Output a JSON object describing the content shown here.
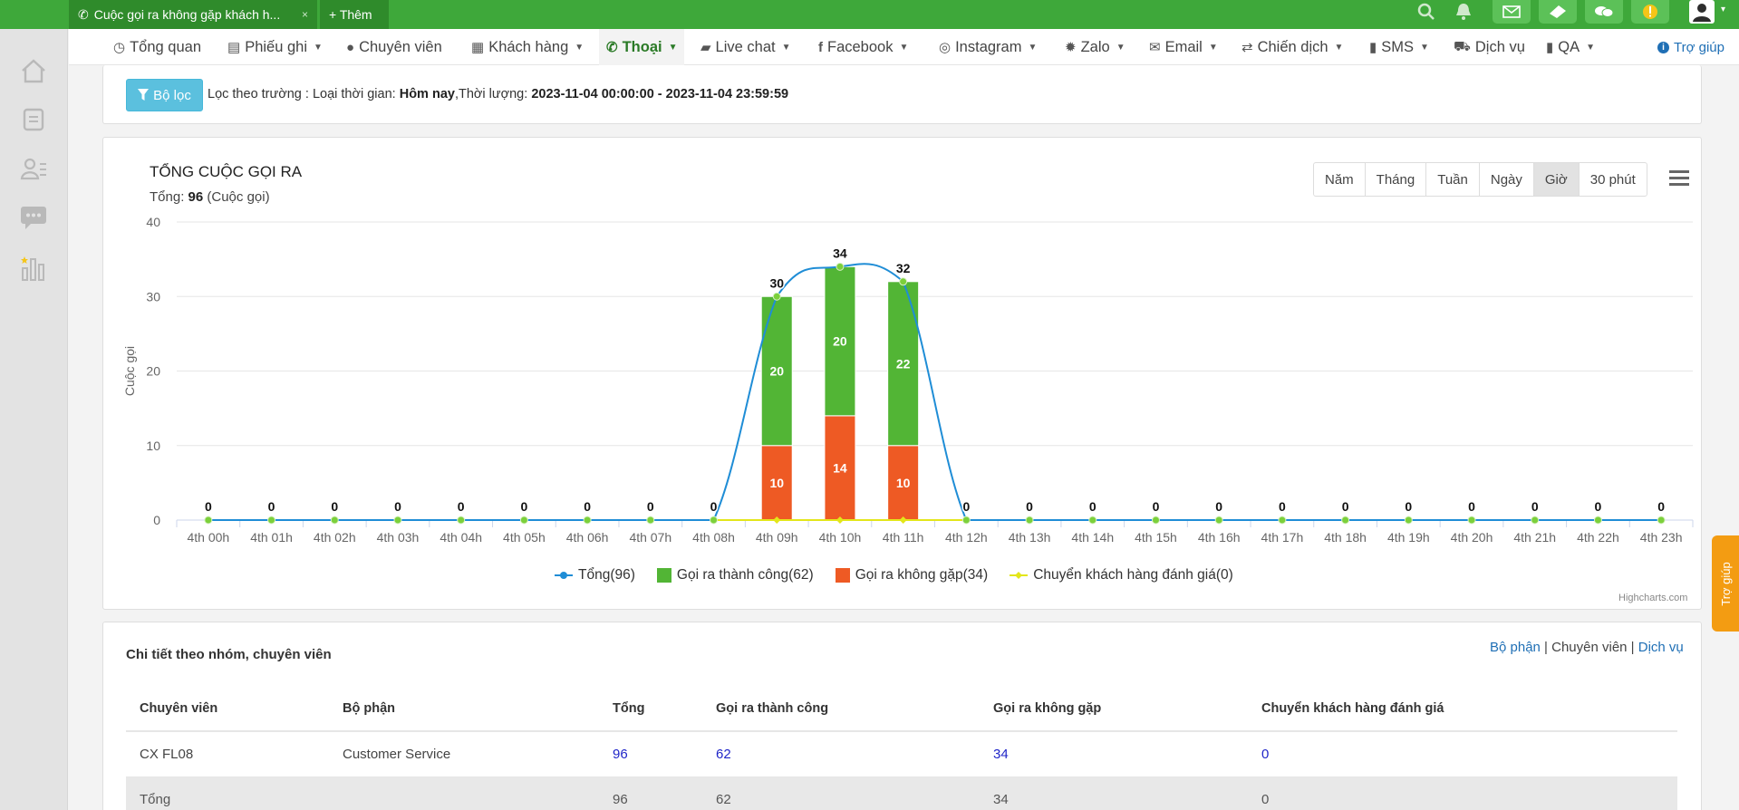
{
  "tabs": [
    {
      "label": "Cuộc gọi ra không gặp khách h...",
      "close": "×"
    },
    {
      "label": "+ Thêm"
    }
  ],
  "nav": {
    "items": [
      "Tổng quan",
      "Phiếu ghi",
      "Chuyên viên",
      "Khách hàng",
      "Thoại",
      "Live chat",
      "Facebook",
      "Instagram",
      "Zalo",
      "Email",
      "Chiến dịch",
      "SMS",
      "Dịch vụ",
      "QA"
    ],
    "active": "Thoại",
    "help": "Trợ giúp"
  },
  "filter": {
    "button": "Bộ lọc",
    "prefix": "Lọc theo trường : Loại thời gian: ",
    "time_type": "Hôm nay",
    "duration_label": ",Thời lượng: ",
    "range": "2023-11-04 00:00:00 - 2023-11-04 23:59:59"
  },
  "chart_header": {
    "title": "TỔNG CUỘC GỌI RA",
    "sub_prefix": "Tổng: ",
    "total": "96",
    "sub_suffix": " (Cuộc gọi)"
  },
  "range_buttons": [
    "Năm",
    "Tháng",
    "Tuần",
    "Ngày",
    "Giờ",
    "30 phút"
  ],
  "range_selected": "Giờ",
  "chart_data": {
    "type": "bar",
    "stacked": true,
    "categories": [
      "4th 00h",
      "4th 01h",
      "4th 02h",
      "4th 03h",
      "4th 04h",
      "4th 05h",
      "4th 06h",
      "4th 07h",
      "4th 08h",
      "4th 09h",
      "4th 10h",
      "4th 11h",
      "4th 12h",
      "4th 13h",
      "4th 14h",
      "4th 15h",
      "4th 16h",
      "4th 17h",
      "4th 18h",
      "4th 19h",
      "4th 20h",
      "4th 21h",
      "4th 22h",
      "4th 23h"
    ],
    "series": [
      {
        "name": "Tổng(96)",
        "kind": "spline",
        "color": "#1f8dd6",
        "values": [
          0,
          0,
          0,
          0,
          0,
          0,
          0,
          0,
          0,
          30,
          34,
          32,
          0,
          0,
          0,
          0,
          0,
          0,
          0,
          0,
          0,
          0,
          0,
          0
        ]
      },
      {
        "name": "Gọi ra thành công(62)",
        "kind": "column",
        "color": "#52b535",
        "values": [
          0,
          0,
          0,
          0,
          0,
          0,
          0,
          0,
          0,
          20,
          20,
          22,
          0,
          0,
          0,
          0,
          0,
          0,
          0,
          0,
          0,
          0,
          0,
          0
        ]
      },
      {
        "name": "Gọi ra không gặp(34)",
        "kind": "column",
        "color": "#ee5a24",
        "values": [
          0,
          0,
          0,
          0,
          0,
          0,
          0,
          0,
          0,
          10,
          14,
          10,
          0,
          0,
          0,
          0,
          0,
          0,
          0,
          0,
          0,
          0,
          0,
          0
        ]
      },
      {
        "name": "Chuyển khách hàng đánh giá(0)",
        "kind": "line",
        "color": "#e3e61a",
        "values": [
          0,
          0,
          0,
          0,
          0,
          0,
          0,
          0,
          0,
          0,
          0,
          0,
          0,
          0,
          0,
          0,
          0,
          0,
          0,
          0,
          0,
          0,
          0,
          0
        ]
      }
    ],
    "ylabel": "Cuộc gọi",
    "ylim": [
      0,
      40
    ],
    "yticks": [
      0,
      10,
      20,
      30,
      40
    ],
    "legend": "bottom-center",
    "grid": true
  },
  "credits": "Highcharts.com",
  "details": {
    "title": "Chi tiết theo nhóm, chuyên viên",
    "links": [
      "Bộ phận",
      "Chuyên viên",
      "Dịch vụ"
    ],
    "sep": " | ",
    "columns": [
      "Chuyên viên",
      "Bộ phận",
      "Tổng",
      "Gọi ra thành công",
      "Gọi ra không gặp",
      "Chuyển khách hàng đánh giá"
    ],
    "rows": [
      [
        "CX FL08",
        "Customer Service",
        "96",
        "62",
        "34",
        "0"
      ],
      [
        "Tổng",
        "",
        "96",
        "62",
        "34",
        "0"
      ]
    ]
  },
  "float_help": "Trợ giúp"
}
